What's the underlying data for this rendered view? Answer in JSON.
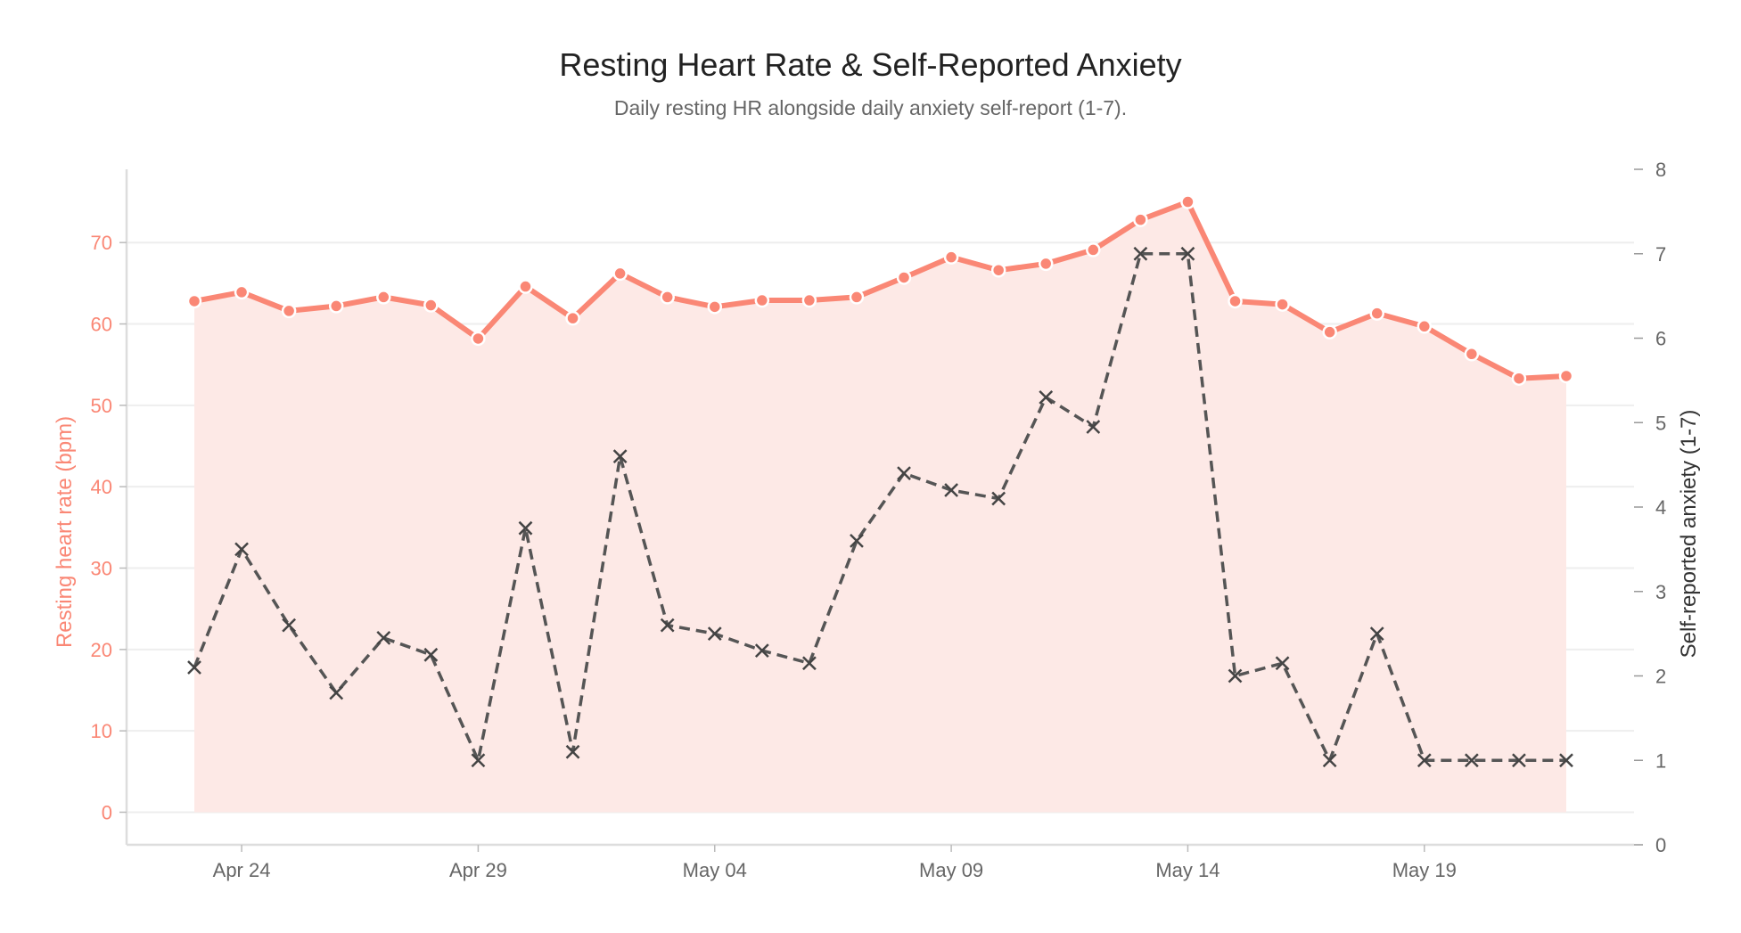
{
  "chart_data": {
    "type": "line",
    "title": "Resting Heart Rate & Self-Reported Anxiety",
    "subtitle": "Daily resting HR alongside daily anxiety self-report (1-7).",
    "xlabel": "",
    "ylabel_left": "Resting heart rate (bpm)",
    "ylabel_right": "Self-reported anxiety (1-7)",
    "x": [
      "2024-04-23",
      "2024-04-24",
      "2024-04-25",
      "2024-04-26",
      "2024-04-27",
      "2024-04-28",
      "2024-04-29",
      "2024-04-30",
      "2024-05-01",
      "2024-05-02",
      "2024-05-03",
      "2024-05-04",
      "2024-05-05",
      "2024-05-06",
      "2024-05-07",
      "2024-05-08",
      "2024-05-09",
      "2024-05-10",
      "2024-05-11",
      "2024-05-12",
      "2024-05-13",
      "2024-05-14",
      "2024-05-15",
      "2024-05-16",
      "2024-05-17",
      "2024-05-18",
      "2024-05-19",
      "2024-05-20",
      "2024-05-21",
      "2024-05-22"
    ],
    "x_ticks": [
      "Apr 24",
      "Apr 29",
      "May 04",
      "May 09",
      "May 14",
      "May 19"
    ],
    "x_tick_dates": [
      "2024-04-24",
      "2024-04-29",
      "2024-05-04",
      "2024-05-09",
      "2024-05-14",
      "2024-05-19"
    ],
    "ylim_left": [
      -4,
      79
    ],
    "ylim_right": [
      0,
      8
    ],
    "yticks_left": [
      0,
      10,
      20,
      30,
      40,
      50,
      60,
      70
    ],
    "yticks_right": [
      0,
      1,
      2,
      3,
      4,
      5,
      6,
      7,
      8
    ],
    "grid": true,
    "series": [
      {
        "name": "",
        "axis": "left",
        "style": "solid-circle-area",
        "color": "#fa8775",
        "fill": "#fde9e6",
        "values": [
          62.8,
          63.9,
          61.6,
          62.2,
          63.3,
          62.3,
          58.2,
          64.6,
          60.7,
          66.2,
          63.3,
          62.1,
          62.9,
          62.9,
          63.3,
          65.7,
          68.2,
          66.6,
          67.4,
          69.1,
          72.8,
          75.0,
          62.8,
          62.4,
          59.0,
          61.3,
          59.7,
          56.3,
          53.3,
          53.6
        ]
      },
      {
        "name": "",
        "axis": "right",
        "style": "dashed-x",
        "color": "#555555",
        "values": [
          2.1,
          3.5,
          2.6,
          1.8,
          2.45,
          2.25,
          1.0,
          3.75,
          1.1,
          4.6,
          2.6,
          2.5,
          2.3,
          2.15,
          3.6,
          4.4,
          4.2,
          4.1,
          5.3,
          4.95,
          7.0,
          7.0,
          2.0,
          2.15,
          1.0,
          2.5,
          1.0,
          1.0,
          1.0,
          1.0
        ]
      }
    ],
    "colors": {
      "hr": "#fa8775",
      "hr_fill": "#fde9e6",
      "anxiety": "#555555",
      "axis_text": "#666666",
      "grid": "#eeeeee"
    }
  }
}
